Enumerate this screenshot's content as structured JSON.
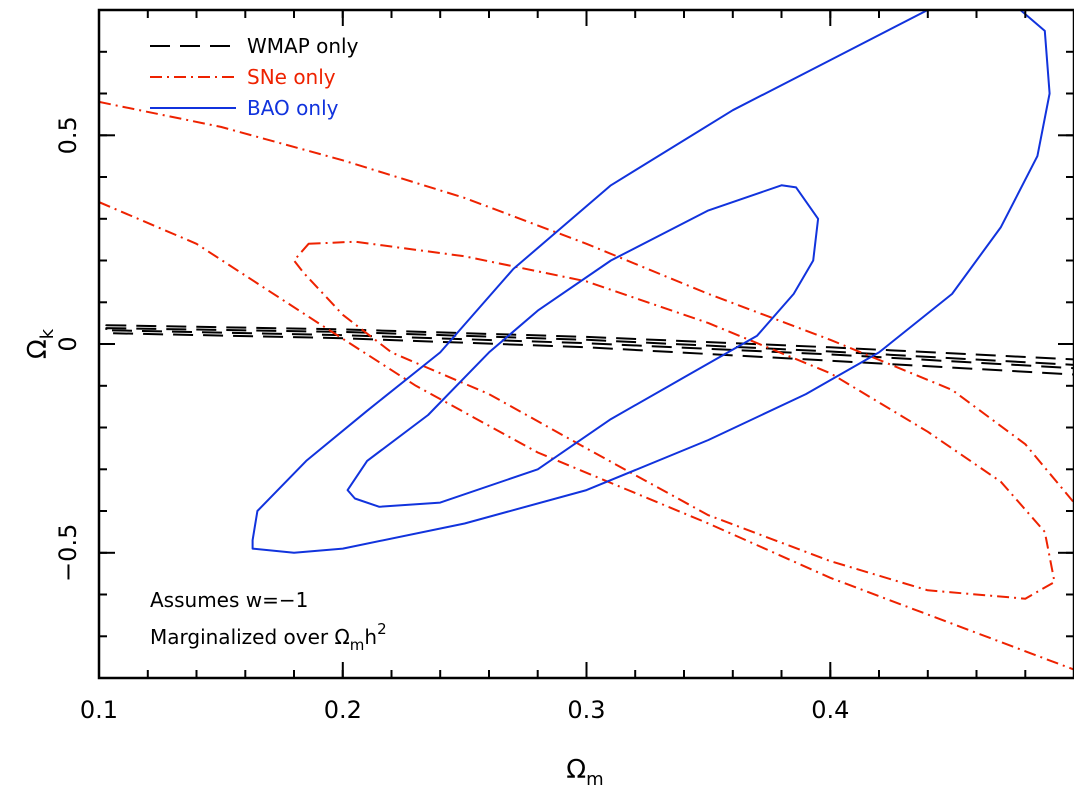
{
  "chart_data": {
    "type": "line",
    "title": "",
    "xlabel": "Ω",
    "xlabel_sub": "m",
    "ylabel": "Ω",
    "ylabel_sub": "k",
    "xlim": [
      0.1,
      0.5
    ],
    "ylim": [
      -0.8,
      0.8
    ],
    "x_ticks": [
      {
        "value": 0.1,
        "label": "0.1"
      },
      {
        "value": 0.2,
        "label": "0.2"
      },
      {
        "value": 0.3,
        "label": "0.3"
      },
      {
        "value": 0.4,
        "label": "0.4"
      }
    ],
    "y_ticks": [
      {
        "value": -0.5,
        "label": "−0.5"
      },
      {
        "value": 0,
        "label": "0"
      },
      {
        "value": 0.5,
        "label": "0.5"
      }
    ],
    "x_minor_step": 0.02,
    "y_minor_step": 0.1,
    "legend": {
      "position": "top-left",
      "entries": [
        {
          "label": "WMAP only",
          "color": "#000000",
          "style": "dashed"
        },
        {
          "label": "SNe only",
          "color": "#ee2200",
          "style": "dashdot"
        },
        {
          "label": "BAO only",
          "color": "#1133dd",
          "style": "solid"
        }
      ]
    },
    "annotations": [
      {
        "text": "Assumes w=−1"
      },
      {
        "text": "Marginalized over Ω",
        "sub": "m",
        "rest": "h",
        "sup": "2"
      }
    ],
    "series": [
      {
        "name": "WMAP only",
        "color": "#000000",
        "style": "dashed",
        "closed": true,
        "points": [
          [
            0.103,
            0.045
          ],
          [
            0.2,
            0.035
          ],
          [
            0.3,
            0.017
          ],
          [
            0.4,
            -0.008
          ],
          [
            0.5,
            -0.037
          ],
          [
            0.5,
            -0.058
          ],
          [
            0.4,
            -0.025
          ],
          [
            0.3,
            0.002
          ],
          [
            0.2,
            0.021
          ],
          [
            0.103,
            0.033
          ]
        ]
      },
      {
        "name": "WMAP only",
        "color": "#000000",
        "style": "dashed",
        "closed": true,
        "points": [
          [
            0.103,
            0.038
          ],
          [
            0.2,
            0.029
          ],
          [
            0.3,
            0.01
          ],
          [
            0.4,
            -0.018
          ],
          [
            0.5,
            -0.05
          ],
          [
            0.5,
            -0.073
          ],
          [
            0.4,
            -0.04
          ],
          [
            0.3,
            -0.008
          ],
          [
            0.2,
            0.014
          ],
          [
            0.103,
            0.026
          ]
        ]
      },
      {
        "name": "SNe only",
        "color": "#ee2200",
        "style": "dashdot",
        "closed": false,
        "points": [
          [
            0.1,
            0.58
          ],
          [
            0.15,
            0.52
          ],
          [
            0.2,
            0.44
          ],
          [
            0.25,
            0.35
          ],
          [
            0.3,
            0.24
          ],
          [
            0.35,
            0.12
          ],
          [
            0.4,
            0.01
          ],
          [
            0.45,
            -0.11
          ],
          [
            0.48,
            -0.24
          ],
          [
            0.5,
            -0.38
          ]
        ]
      },
      {
        "name": "SNe only",
        "color": "#ee2200",
        "style": "dashdot",
        "closed": false,
        "points": [
          [
            0.1,
            0.34
          ],
          [
            0.14,
            0.24
          ],
          [
            0.19,
            0.05
          ],
          [
            0.23,
            -0.1
          ],
          [
            0.28,
            -0.26
          ],
          [
            0.35,
            -0.43
          ],
          [
            0.4,
            -0.56
          ],
          [
            0.45,
            -0.67
          ],
          [
            0.5,
            -0.78
          ]
        ]
      },
      {
        "name": "SNe only",
        "color": "#ee2200",
        "style": "dashdot",
        "closed": true,
        "points": [
          [
            0.186,
            0.24
          ],
          [
            0.205,
            0.245
          ],
          [
            0.25,
            0.21
          ],
          [
            0.3,
            0.15
          ],
          [
            0.35,
            0.05
          ],
          [
            0.4,
            -0.07
          ],
          [
            0.44,
            -0.21
          ],
          [
            0.47,
            -0.33
          ],
          [
            0.488,
            -0.45
          ],
          [
            0.492,
            -0.57
          ],
          [
            0.48,
            -0.61
          ],
          [
            0.44,
            -0.59
          ],
          [
            0.4,
            -0.52
          ],
          [
            0.35,
            -0.41
          ],
          [
            0.3,
            -0.25
          ],
          [
            0.26,
            -0.12
          ],
          [
            0.22,
            -0.02
          ],
          [
            0.2,
            0.07
          ],
          [
            0.184,
            0.17
          ],
          [
            0.18,
            0.2
          ]
        ]
      },
      {
        "name": "BAO only",
        "color": "#1133dd",
        "style": "solid",
        "closed": true,
        "points": [
          [
            0.163,
            -0.47
          ],
          [
            0.165,
            -0.4
          ],
          [
            0.185,
            -0.28
          ],
          [
            0.21,
            -0.16
          ],
          [
            0.24,
            -0.02
          ],
          [
            0.27,
            0.18
          ],
          [
            0.31,
            0.38
          ],
          [
            0.36,
            0.56
          ],
          [
            0.4,
            0.68
          ],
          [
            0.44,
            0.8
          ],
          [
            0.478,
            0.8
          ],
          [
            0.488,
            0.75
          ],
          [
            0.49,
            0.6
          ],
          [
            0.485,
            0.45
          ],
          [
            0.47,
            0.28
          ],
          [
            0.45,
            0.12
          ],
          [
            0.42,
            -0.02
          ],
          [
            0.39,
            -0.12
          ],
          [
            0.35,
            -0.23
          ],
          [
            0.3,
            -0.35
          ],
          [
            0.25,
            -0.43
          ],
          [
            0.2,
            -0.49
          ],
          [
            0.18,
            -0.5
          ],
          [
            0.163,
            -0.49
          ]
        ]
      },
      {
        "name": "BAO only",
        "color": "#1133dd",
        "style": "solid",
        "closed": true,
        "points": [
          [
            0.202,
            -0.35
          ],
          [
            0.21,
            -0.28
          ],
          [
            0.235,
            -0.17
          ],
          [
            0.26,
            -0.02
          ],
          [
            0.28,
            0.08
          ],
          [
            0.31,
            0.2
          ],
          [
            0.35,
            0.32
          ],
          [
            0.38,
            0.38
          ],
          [
            0.386,
            0.375
          ],
          [
            0.395,
            0.3
          ],
          [
            0.393,
            0.2
          ],
          [
            0.385,
            0.12
          ],
          [
            0.37,
            0.02
          ],
          [
            0.34,
            -0.08
          ],
          [
            0.31,
            -0.18
          ],
          [
            0.28,
            -0.3
          ],
          [
            0.24,
            -0.38
          ],
          [
            0.215,
            -0.39
          ],
          [
            0.205,
            -0.37
          ]
        ]
      }
    ]
  }
}
